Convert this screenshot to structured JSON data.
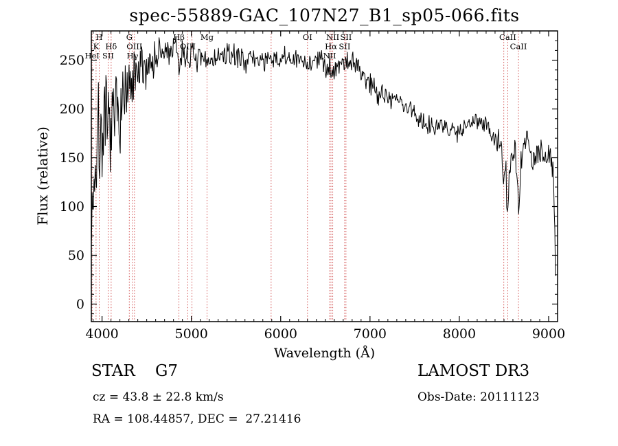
{
  "title": "spec-55889-GAC_107N27_B1_sp05-066.fits",
  "footer": {
    "class_label": "STAR    G7",
    "cz": "cz = 43.8 ± 22.8 km/s",
    "radec": "RA = 108.44857, DEC =  27.21416",
    "survey": "LAMOST DR3",
    "obs_date": "Obs-Date: 20111123"
  },
  "chart_data": {
    "type": "line",
    "title": "spec-55889-GAC_107N27_B1_sp05-066.fits",
    "xlabel": "Wavelength (Å)",
    "ylabel": "Flux (relative)",
    "xlim": [
      3880,
      9100
    ],
    "ylim": [
      -18,
      280
    ],
    "x_ticks": [
      4000,
      5000,
      6000,
      7000,
      8000,
      9000
    ],
    "y_ticks": [
      0,
      50,
      100,
      150,
      200,
      250
    ],
    "x_minor_step": 100,
    "y_minor_step": 10,
    "grid": false,
    "legend": "none",
    "line_color": "#000000",
    "marker_color": "#cc3b3b",
    "label_color": "#7b2424",
    "seed": 7,
    "sample_step": 7,
    "spectral_lines": [
      {
        "wl": 3889,
        "label": "HeI",
        "row": 2
      },
      {
        "wl": 3933,
        "label": "K",
        "row": 1
      },
      {
        "wl": 3969,
        "label": "H",
        "row": 0
      },
      {
        "wl": 4068,
        "label": "SII",
        "row": 2
      },
      {
        "wl": 4102,
        "label": "Hδ",
        "row": 1
      },
      {
        "wl": 4305,
        "label": "G",
        "row": 0
      },
      {
        "wl": 4341,
        "label": "Hγ",
        "row": 2
      },
      {
        "wl": 4363,
        "label": "OIII",
        "row": 1
      },
      {
        "wl": 4861,
        "label": "Hβ",
        "row": 0
      },
      {
        "wl": 4959,
        "label": "OIII",
        "row": 1
      },
      {
        "wl": 5007,
        "label": "",
        "row": -1
      },
      {
        "wl": 5175,
        "label": "Mg",
        "row": 0
      },
      {
        "wl": 5893,
        "label": "",
        "row": -1
      },
      {
        "wl": 6300,
        "label": "OI",
        "row": 0
      },
      {
        "wl": 6548,
        "label": "NII",
        "row": 2
      },
      {
        "wl": 6563,
        "label": "Hα",
        "row": 1
      },
      {
        "wl": 6583,
        "label": "NII",
        "row": 0
      },
      {
        "wl": 6716,
        "label": "SII",
        "row": 1
      },
      {
        "wl": 6731,
        "label": "SII",
        "row": 0
      },
      {
        "wl": 8498,
        "label": "",
        "row": -1
      },
      {
        "wl": 8542,
        "label": "CaII",
        "row": 0
      },
      {
        "wl": 8662,
        "label": "CaII",
        "row": 1
      }
    ],
    "envelope": [
      [
        3880,
        95
      ],
      [
        3910,
        130
      ],
      [
        3935,
        150
      ],
      [
        3960,
        165
      ],
      [
        3985,
        175
      ],
      [
        4010,
        180
      ],
      [
        4040,
        172
      ],
      [
        4070,
        178
      ],
      [
        4096,
        182
      ],
      [
        4104,
        166
      ],
      [
        4115,
        182
      ],
      [
        4150,
        192
      ],
      [
        4200,
        203
      ],
      [
        4250,
        209
      ],
      [
        4300,
        214
      ],
      [
        4350,
        224
      ],
      [
        4400,
        233
      ],
      [
        4450,
        240
      ],
      [
        4500,
        245
      ],
      [
        4550,
        249
      ],
      [
        4600,
        252
      ],
      [
        4650,
        255
      ],
      [
        4700,
        257
      ],
      [
        4750,
        259
      ],
      [
        4800,
        261
      ],
      [
        4845,
        258
      ],
      [
        4861,
        238
      ],
      [
        4878,
        257
      ],
      [
        4900,
        256
      ],
      [
        4950,
        254
      ],
      [
        5000,
        254
      ],
      [
        5050,
        252
      ],
      [
        5100,
        249
      ],
      [
        5150,
        248
      ],
      [
        5200,
        250
      ],
      [
        5300,
        253
      ],
      [
        5400,
        255
      ],
      [
        5500,
        254
      ],
      [
        5600,
        251
      ],
      [
        5700,
        251
      ],
      [
        5800,
        251
      ],
      [
        5900,
        248
      ],
      [
        6000,
        251
      ],
      [
        6100,
        251
      ],
      [
        6200,
        249
      ],
      [
        6300,
        247
      ],
      [
        6400,
        250
      ],
      [
        6500,
        247
      ],
      [
        6550,
        242
      ],
      [
        6563,
        233
      ],
      [
        6580,
        243
      ],
      [
        6650,
        246
      ],
      [
        6700,
        248
      ],
      [
        6750,
        250
      ],
      [
        6800,
        249
      ],
      [
        6850,
        243
      ],
      [
        6900,
        238
      ],
      [
        6950,
        232
      ],
      [
        7000,
        227
      ],
      [
        7050,
        222
      ],
      [
        7100,
        218
      ],
      [
        7150,
        215
      ],
      [
        7200,
        213
      ],
      [
        7300,
        209
      ],
      [
        7400,
        203
      ],
      [
        7500,
        195
      ],
      [
        7600,
        186
      ],
      [
        7700,
        185
      ],
      [
        7800,
        181
      ],
      [
        7900,
        179
      ],
      [
        8000,
        178
      ],
      [
        8050,
        181
      ],
      [
        8100,
        185
      ],
      [
        8150,
        188
      ],
      [
        8200,
        191
      ],
      [
        8250,
        189
      ],
      [
        8300,
        184
      ],
      [
        8350,
        176
      ],
      [
        8400,
        168
      ],
      [
        8440,
        162
      ],
      [
        8480,
        157
      ],
      [
        8498,
        122
      ],
      [
        8515,
        148
      ],
      [
        8542,
        82
      ],
      [
        8565,
        132
      ],
      [
        8600,
        158
      ],
      [
        8630,
        149
      ],
      [
        8662,
        95
      ],
      [
        8690,
        148
      ],
      [
        8720,
        166
      ],
      [
        8750,
        172
      ],
      [
        8780,
        161
      ],
      [
        8810,
        148
      ],
      [
        8840,
        145
      ],
      [
        8870,
        150
      ],
      [
        8900,
        153
      ],
      [
        8940,
        152
      ],
      [
        8980,
        153
      ],
      [
        9020,
        150
      ],
      [
        9050,
        142
      ],
      [
        9068,
        80
      ],
      [
        9076,
        30
      ]
    ],
    "noise": [
      [
        3880,
        62
      ],
      [
        3920,
        58
      ],
      [
        3960,
        54
      ],
      [
        4000,
        48
      ],
      [
        4050,
        45
      ],
      [
        4100,
        42
      ],
      [
        4150,
        40
      ],
      [
        4200,
        36
      ],
      [
        4300,
        30
      ],
      [
        4400,
        26
      ],
      [
        4500,
        22
      ],
      [
        4600,
        18
      ],
      [
        4700,
        16
      ],
      [
        4800,
        14
      ],
      [
        4900,
        13
      ],
      [
        5000,
        12
      ],
      [
        5200,
        11
      ],
      [
        5400,
        10
      ],
      [
        5600,
        10
      ],
      [
        5800,
        10
      ],
      [
        6000,
        10
      ],
      [
        6200,
        10
      ],
      [
        6400,
        10
      ],
      [
        6600,
        11
      ],
      [
        6800,
        12
      ],
      [
        6900,
        13
      ],
      [
        7000,
        12
      ],
      [
        7200,
        11
      ],
      [
        7400,
        10
      ],
      [
        7600,
        10
      ],
      [
        7800,
        9
      ],
      [
        8000,
        8
      ],
      [
        8200,
        9
      ],
      [
        8400,
        11
      ],
      [
        8500,
        16
      ],
      [
        8550,
        20
      ],
      [
        8650,
        18
      ],
      [
        8750,
        12
      ],
      [
        8850,
        10
      ],
      [
        8950,
        11
      ],
      [
        9076,
        8
      ]
    ]
  }
}
